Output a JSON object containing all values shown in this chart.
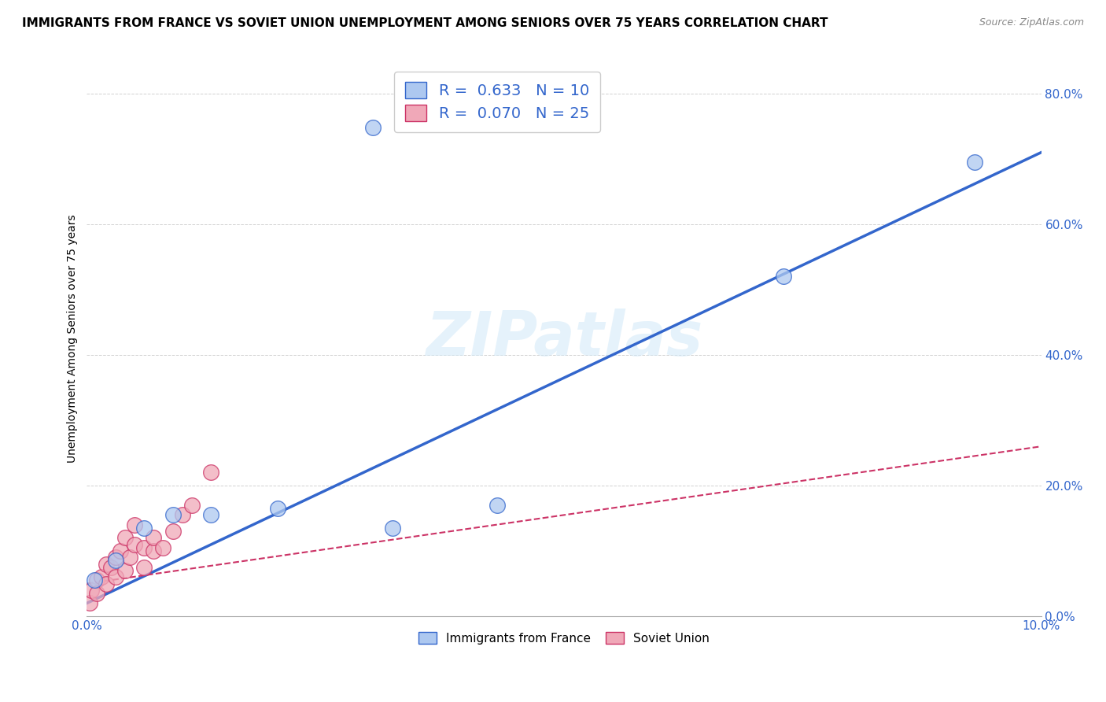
{
  "title": "IMMIGRANTS FROM FRANCE VS SOVIET UNION UNEMPLOYMENT AMONG SENIORS OVER 75 YEARS CORRELATION CHART",
  "source": "Source: ZipAtlas.com",
  "ylabel": "Unemployment Among Seniors over 75 years",
  "xlim": [
    0.0,
    0.1
  ],
  "ylim": [
    0.0,
    0.85
  ],
  "xticks": [
    0.0,
    0.1
  ],
  "yticks": [
    0.0,
    0.2,
    0.4,
    0.6,
    0.8
  ],
  "france_x": [
    0.0008,
    0.003,
    0.006,
    0.009,
    0.013,
    0.02,
    0.032,
    0.043,
    0.073,
    0.093
  ],
  "france_y": [
    0.055,
    0.085,
    0.135,
    0.155,
    0.155,
    0.165,
    0.135,
    0.17,
    0.52,
    0.695
  ],
  "france_outlier_x": [
    0.03
  ],
  "france_outlier_y": [
    0.748
  ],
  "soviet_x": [
    0.0003,
    0.0005,
    0.001,
    0.001,
    0.0015,
    0.002,
    0.002,
    0.0025,
    0.003,
    0.003,
    0.0035,
    0.004,
    0.004,
    0.0045,
    0.005,
    0.005,
    0.006,
    0.006,
    0.007,
    0.007,
    0.008,
    0.009,
    0.01,
    0.011,
    0.013
  ],
  "soviet_y": [
    0.02,
    0.04,
    0.055,
    0.035,
    0.06,
    0.05,
    0.08,
    0.075,
    0.06,
    0.09,
    0.1,
    0.07,
    0.12,
    0.09,
    0.11,
    0.14,
    0.105,
    0.075,
    0.1,
    0.12,
    0.105,
    0.13,
    0.155,
    0.17,
    0.22
  ],
  "france_R": 0.633,
  "france_N": 10,
  "soviet_R": 0.07,
  "soviet_N": 25,
  "france_color": "#adc8f0",
  "france_line_color": "#3366cc",
  "soviet_color": "#f0a8b8",
  "soviet_line_color": "#cc3366",
  "france_trendline_x": [
    0.0,
    0.1
  ],
  "france_trendline_y": [
    0.02,
    0.71
  ],
  "soviet_trendline_x": [
    0.0,
    0.1
  ],
  "soviet_trendline_y": [
    0.05,
    0.26
  ],
  "watermark": "ZIPatlas",
  "legend_label_france": "Immigrants from France",
  "legend_label_soviet": "Soviet Union",
  "title_fontsize": 11,
  "axis_label_fontsize": 10,
  "tick_fontsize": 11,
  "source_fontsize": 9
}
